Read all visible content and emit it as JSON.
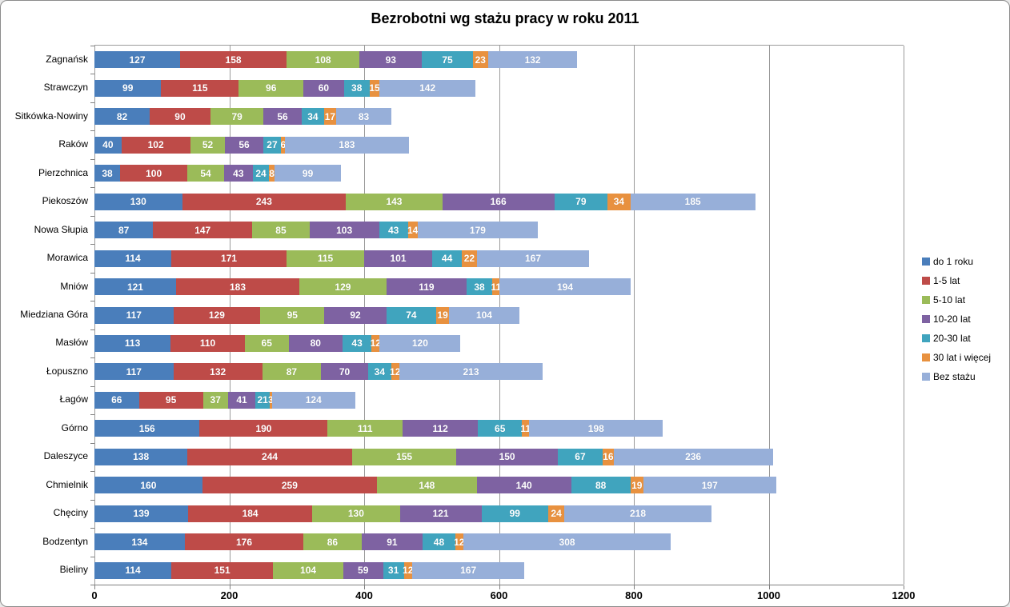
{
  "chart_data": {
    "type": "bar",
    "orientation": "horizontal-stacked",
    "title": "Bezrobotni wg stażu pracy w roku 2011",
    "categories": [
      "Zagnańsk",
      "Strawczyn",
      "Sitkówka-Nowiny",
      "Raków",
      "Pierzchnica",
      "Piekoszów",
      "Nowa Słupia",
      "Morawica",
      "Mniów",
      "Miedziana Góra",
      "Masłów",
      "Łopuszno",
      "Łagów",
      "Górno",
      "Daleszyce",
      "Chmielnik",
      "Chęciny",
      "Bodzentyn",
      "Bieliny"
    ],
    "series": [
      {
        "name": "do 1 roku",
        "color": "#4A7EBB",
        "values": [
          127,
          99,
          82,
          40,
          38,
          130,
          87,
          114,
          121,
          117,
          113,
          117,
          66,
          156,
          138,
          160,
          139,
          134,
          114
        ]
      },
      {
        "name": "1-5 lat",
        "color": "#BE4B48",
        "values": [
          158,
          115,
          90,
          102,
          100,
          243,
          147,
          171,
          183,
          129,
          110,
          132,
          95,
          190,
          244,
          259,
          184,
          176,
          151
        ]
      },
      {
        "name": "5-10 lat",
        "color": "#9BBB59",
        "values": [
          108,
          96,
          79,
          52,
          54,
          143,
          85,
          115,
          129,
          95,
          65,
          87,
          37,
          111,
          155,
          148,
          130,
          86,
          104
        ]
      },
      {
        "name": "10-20 lat",
        "color": "#7E62A2",
        "values": [
          93,
          60,
          56,
          56,
          43,
          166,
          103,
          101,
          119,
          92,
          80,
          70,
          41,
          112,
          150,
          140,
          121,
          91,
          59
        ]
      },
      {
        "name": "20-30 lat",
        "color": "#40A4BE",
        "values": [
          75,
          38,
          34,
          27,
          24,
          79,
          43,
          44,
          38,
          74,
          43,
          34,
          21,
          65,
          67,
          88,
          99,
          48,
          31
        ]
      },
      {
        "name": "30 lat i więcej",
        "color": "#E8913F",
        "values": [
          23,
          15,
          17,
          6,
          8,
          34,
          14,
          22,
          11,
          19,
          12,
          12,
          3,
          11,
          16,
          19,
          24,
          12,
          12
        ]
      },
      {
        "name": "Bez stażu",
        "color": "#97AFD9",
        "values": [
          132,
          142,
          83,
          183,
          99,
          185,
          179,
          167,
          194,
          104,
          120,
          213,
          124,
          198,
          236,
          197,
          218,
          308,
          167
        ]
      }
    ],
    "xlim": [
      0,
      1200
    ],
    "x_ticks": [
      "0",
      "200",
      "400",
      "600",
      "800",
      "1000",
      "1200"
    ],
    "grid": true,
    "legend_position": "right",
    "data_labels": true
  }
}
